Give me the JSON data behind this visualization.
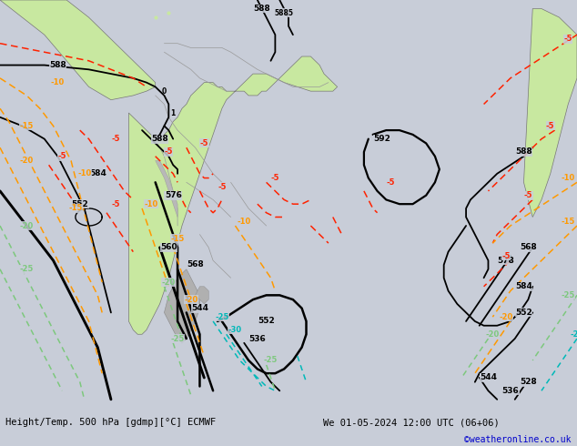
{
  "title_left": "Height/Temp. 500 hPa [gdmp][°C] ECMWF",
  "title_right": "We 01-05-2024 12:00 UTC (06+06)",
  "credit": "©weatheronline.co.uk",
  "bg_color": "#c8cdd8",
  "land_color": "#c8e8a0",
  "ocean_color": "#c8cdd8",
  "gray_land": "#b0b0b0",
  "fig_width": 6.34,
  "fig_height": 4.9,
  "dpi": 100,
  "footer_fontsize": 7.5,
  "credit_fontsize": 7,
  "credit_color": "#0000cc",
  "xlim": [
    -110,
    20
  ],
  "ylim": [
    -72,
    22
  ],
  "map_bottom": 0.085
}
